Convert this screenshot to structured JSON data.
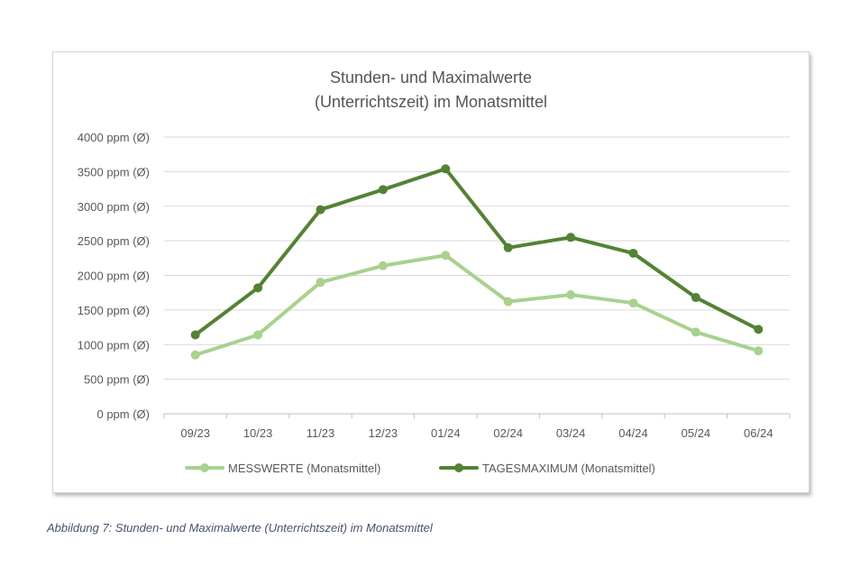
{
  "chart_data": {
    "type": "line",
    "title_lines": [
      "Stunden- und Maximalwerte",
      "(Unterrichtszeit) im Monatsmittel"
    ],
    "categories": [
      "09/23",
      "10/23",
      "11/23",
      "12/23",
      "01/24",
      "02/24",
      "03/24",
      "04/24",
      "05/24",
      "06/24"
    ],
    "y_ticks": [
      "0 ppm (Ø)",
      "500 ppm (Ø)",
      "1000 ppm (Ø)",
      "1500 ppm (Ø)",
      "2000 ppm (Ø)",
      "2500 ppm (Ø)",
      "3000 ppm (Ø)",
      "3500 ppm (Ø)",
      "4000 ppm (Ø)"
    ],
    "ylim": [
      0,
      4000
    ],
    "grid": true,
    "legend_position": "bottom",
    "series": [
      {
        "name": "MESSWERTE (Monatsmittel)",
        "color": "#a9d18e",
        "values": [
          850,
          1140,
          1900,
          2140,
          2290,
          1620,
          1720,
          1600,
          1180,
          910
        ]
      },
      {
        "name": "TAGESMAXIMUM (Monatsmittel)",
        "color": "#548235",
        "values": [
          1140,
          1820,
          2950,
          3240,
          3540,
          2400,
          2550,
          2320,
          1680,
          1220
        ]
      }
    ]
  },
  "caption": "Abbildung 7: Stunden- und Maximalwerte (Unterrichtszeit) im Monatsmittel"
}
